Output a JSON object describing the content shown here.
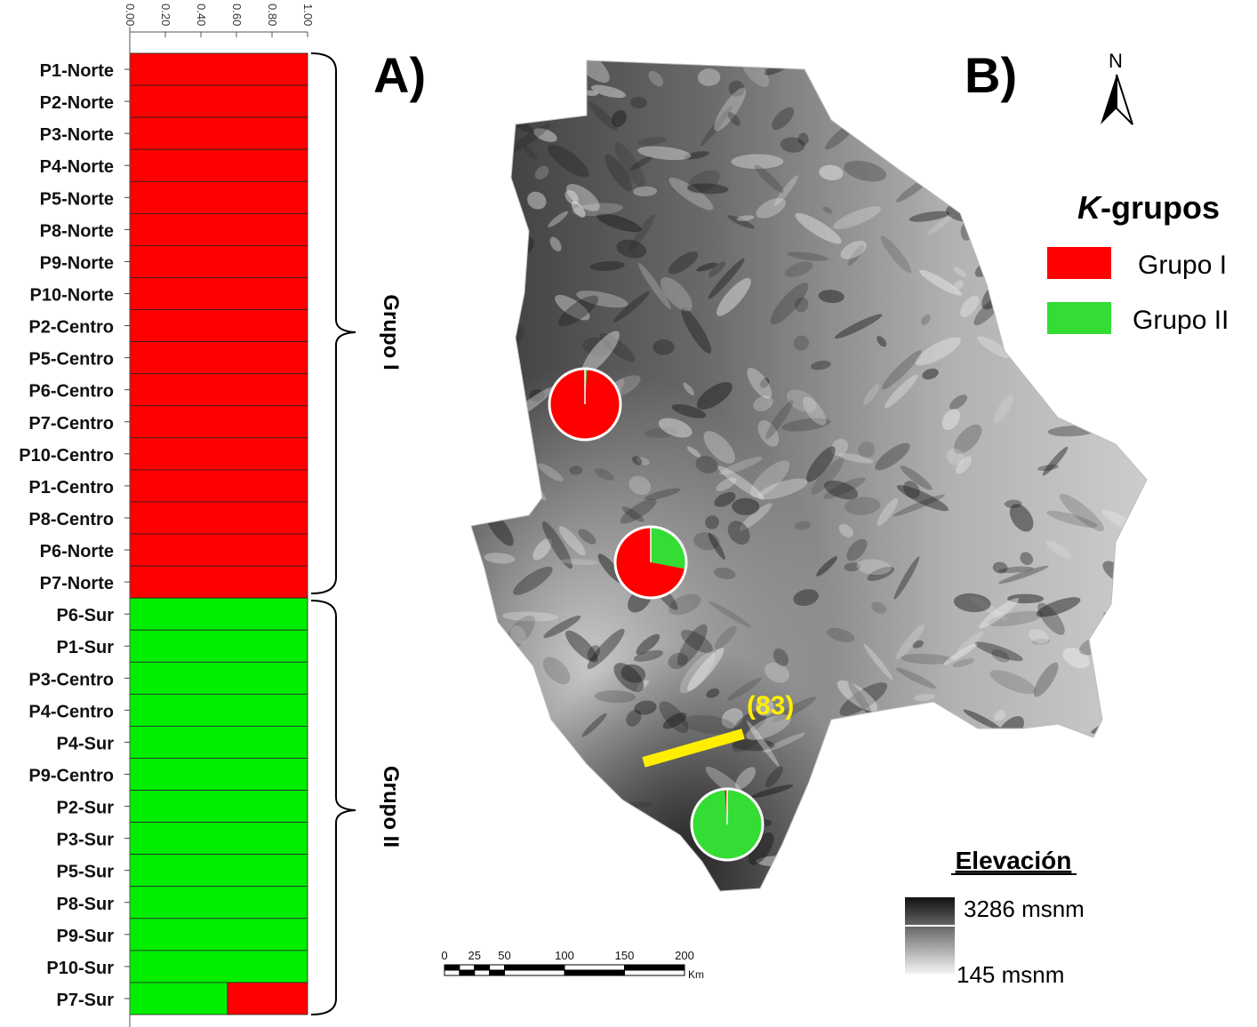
{
  "panel_a": {
    "label": "A)",
    "x_ticks": [
      "0.00",
      "0.20",
      "0.40",
      "0.60",
      "0.80",
      "1.00"
    ],
    "group_labels": [
      "Grupo I",
      "Grupo II"
    ],
    "colors": {
      "grupo_1": "#ff0000",
      "grupo_2": "#00ee00"
    }
  },
  "chart_data": {
    "type": "bar",
    "orientation": "horizontal-stacked",
    "xlim": [
      0,
      1
    ],
    "categories": [
      "P1-Norte",
      "P2-Norte",
      "P3-Norte",
      "P4-Norte",
      "P5-Norte",
      "P8-Norte",
      "P9-Norte",
      "P10-Norte",
      "P2-Centro",
      "P5-Centro",
      "P6-Centro",
      "P7-Centro",
      "P10-Centro",
      "P1-Centro",
      "P8-Centro",
      "P6-Norte",
      "P7-Norte",
      "P6-Sur",
      "P1-Sur",
      "P3-Centro",
      "P4-Centro",
      "P4-Sur",
      "P9-Centro",
      "P2-Sur",
      "P3-Sur",
      "P5-Sur",
      "P8-Sur",
      "P9-Sur",
      "P10-Sur",
      "P7-Sur"
    ],
    "series": [
      {
        "name": "Grupo I",
        "color": "#ff0000",
        "values": [
          1,
          1,
          1,
          1,
          1,
          1,
          1,
          1,
          1,
          1,
          1,
          1,
          1,
          1,
          1,
          1,
          1,
          0,
          0,
          0,
          0,
          0,
          0,
          0,
          0,
          0,
          0,
          0,
          0,
          0.45
        ]
      },
      {
        "name": "Grupo II",
        "color": "#00ee00",
        "values": [
          0,
          0,
          0,
          0,
          0,
          0,
          0,
          0,
          0,
          0,
          0,
          0,
          0,
          0,
          0,
          0,
          0,
          1,
          1,
          1,
          1,
          1,
          1,
          1,
          1,
          1,
          1,
          1,
          1,
          0.55
        ]
      }
    ],
    "groups": [
      {
        "name": "Grupo I",
        "from": "P1-Norte",
        "to": "P7-Norte"
      },
      {
        "name": "Grupo II",
        "from": "P6-Sur",
        "to": "P7-Sur"
      }
    ]
  },
  "panel_b": {
    "label": "B)",
    "north_label": "N",
    "legend_title_k": "K",
    "legend_title_rest": "-grupos",
    "legend": [
      {
        "label": "Grupo I",
        "color": "#ff0000"
      },
      {
        "label": "Grupo II",
        "color": "#33dd33"
      }
    ],
    "pies": [
      {
        "region": "Norte",
        "grupo_1": 0.99,
        "grupo_2": 0.01
      },
      {
        "region": "Centro",
        "grupo_1": 0.72,
        "grupo_2": 0.28
      },
      {
        "region": "Sur",
        "grupo_1": 0.01,
        "grupo_2": 0.99
      }
    ],
    "barrier_label": "(83)",
    "barrier_color": "#ffee00",
    "elevation_title": "Elevación",
    "elevation_max": "3286 msnm",
    "elevation_min": "145 msnm",
    "scale_ticks": [
      "0",
      "25",
      "50",
      "100",
      "150",
      "200"
    ],
    "scale_unit": "Km"
  }
}
